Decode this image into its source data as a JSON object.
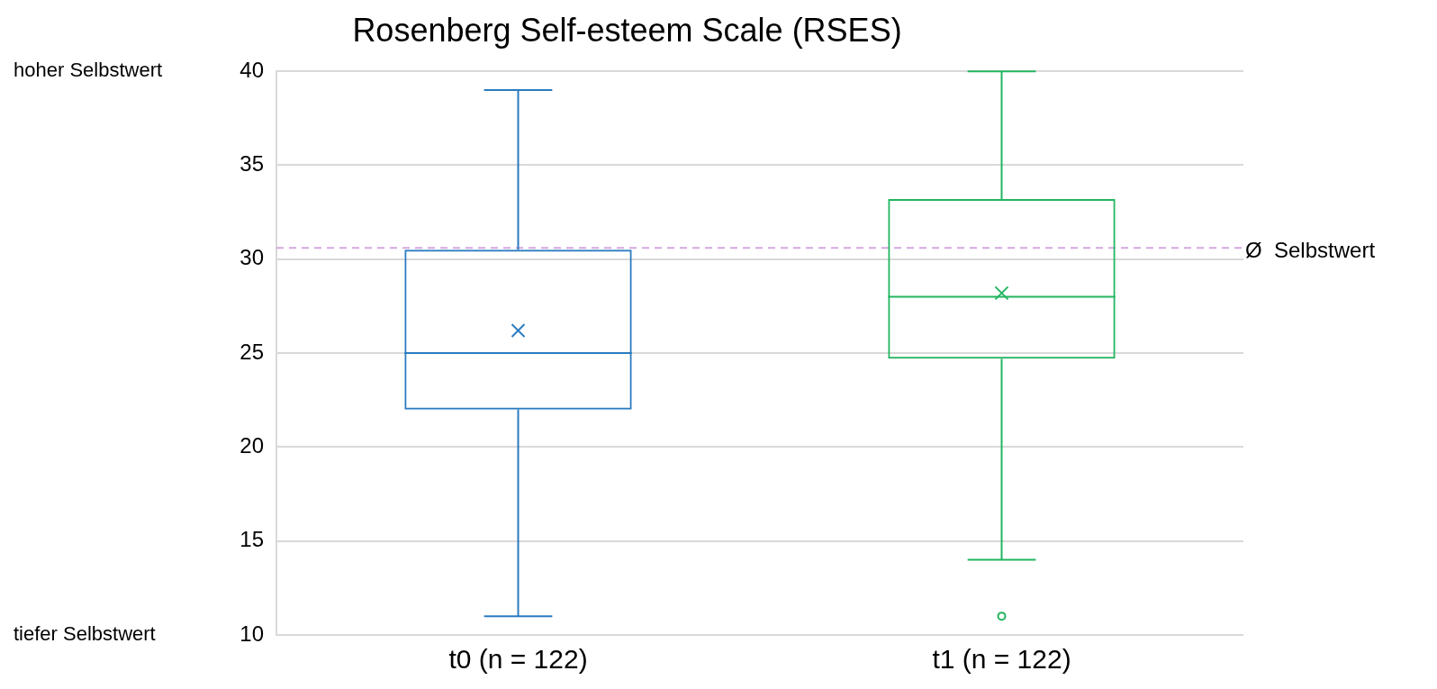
{
  "chart_data": {
    "type": "box",
    "title": "Rosenberg Self-esteem Scale (RSES)",
    "categories": [
      "t0 (n = 122)",
      "t1 (n = 122)"
    ],
    "colors": [
      "#2a7bc0",
      "#22b560"
    ],
    "boxes": [
      {
        "low": 11,
        "q1": 22,
        "median": 25,
        "q3": 30.5,
        "high": 39,
        "mean": 26.2
      },
      {
        "low": 14,
        "q1": 24.7,
        "median": 28,
        "q3": 33.2,
        "high": 40,
        "mean": 28.2,
        "outliers": [
          11
        ]
      }
    ],
    "ylim": [
      10,
      40
    ],
    "yticks": [
      10,
      15,
      20,
      25,
      30,
      35,
      40
    ],
    "grid": "y",
    "legend": false,
    "ref_lines": [
      {
        "axis": "y",
        "value": 30.6,
        "label": "Ø  Selbstwert",
        "color": "#d4a8e0",
        "line_style": "dashed"
      }
    ],
    "annotations": [
      "hoher Selbstwert",
      "tiefer Selbstwert"
    ]
  }
}
